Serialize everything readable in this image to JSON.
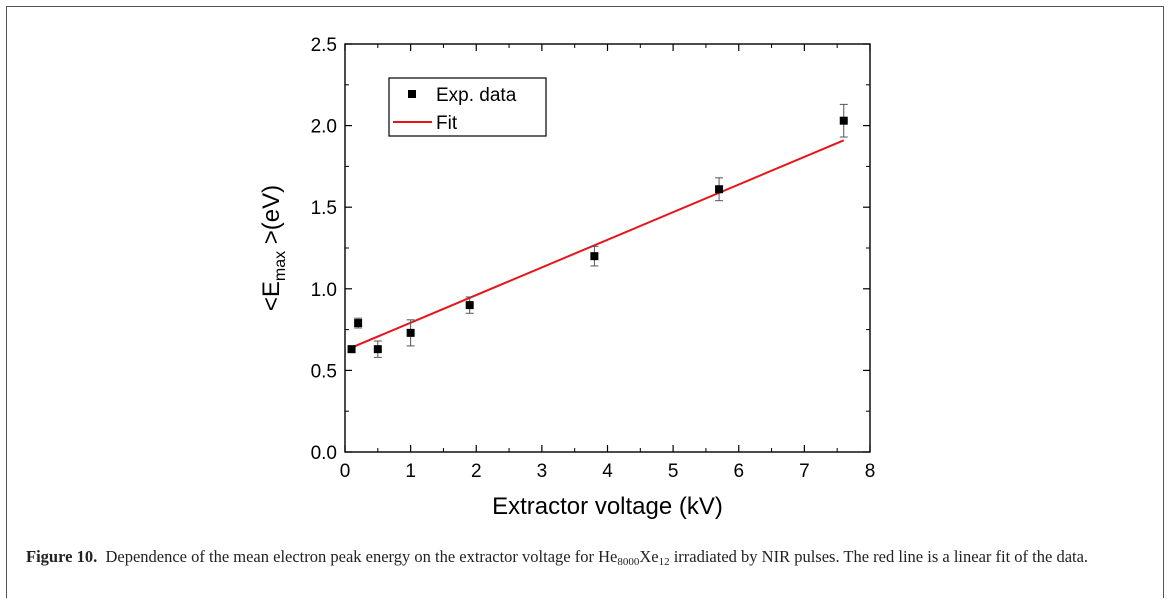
{
  "chart_data": {
    "type": "scatter",
    "xlabel": "Extractor voltage (kV)",
    "ylabel_prefix": "<E",
    "ylabel_sub": "max",
    "ylabel_suffix": " >(eV)",
    "xlim": [
      0,
      8
    ],
    "ylim": [
      0,
      2.5
    ],
    "xticks": [
      "0",
      "1",
      "2",
      "3",
      "4",
      "5",
      "6",
      "7",
      "8"
    ],
    "yticks": [
      "0.0",
      "0.5",
      "1.0",
      "1.5",
      "2.0",
      "2.5"
    ],
    "grid": false,
    "legend_position": "top-left",
    "series": [
      {
        "name": "Exp. data",
        "color": "#000000",
        "marker": "square",
        "x": [
          0.1,
          0.2,
          0.5,
          1.0,
          1.9,
          3.8,
          5.7,
          7.6
        ],
        "y": [
          0.63,
          0.79,
          0.63,
          0.73,
          0.9,
          1.2,
          1.61,
          2.03
        ],
        "yerr": [
          0.02,
          0.03,
          0.05,
          0.08,
          0.05,
          0.06,
          0.07,
          0.1
        ]
      },
      {
        "name": "Fit",
        "color": "#e8141a",
        "kind": "line",
        "x": [
          0.1,
          7.6
        ],
        "y": [
          0.64,
          1.91
        ]
      }
    ]
  },
  "caption": {
    "label": "Figure 10.",
    "text_before": "Dependence of the mean electron peak energy on the extractor voltage for He",
    "sub1": "8000",
    "mid": "Xe",
    "sub2": "12",
    "text_after": " irradiated by NIR pulses. The red line is a linear fit of the data."
  }
}
